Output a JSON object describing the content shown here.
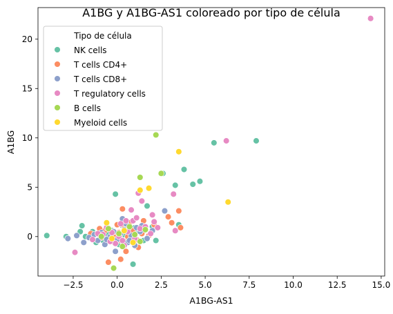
{
  "chart_data": {
    "type": "scatter",
    "title": "A1BG y A1BG-AS1 coloreado por tipo de célula",
    "xlabel": "A1BG-AS1",
    "ylabel": "A1BG",
    "xlim": [
      -4.5,
      15.2
    ],
    "ylim": [
      -4.0,
      23.2
    ],
    "xticks": [
      -2.5,
      0.0,
      2.5,
      5.0,
      7.5,
      10.0,
      12.5,
      15.0
    ],
    "xtick_labels": [
      "−2.5",
      "0.0",
      "2.5",
      "5.0",
      "7.5",
      "10.0",
      "12.5",
      "15.0"
    ],
    "yticks": [
      0,
      5,
      10,
      15,
      20
    ],
    "ytick_labels": [
      "0",
      "5",
      "10",
      "15",
      "20"
    ],
    "grid": false,
    "legend": {
      "title": "Tipo de célula",
      "placement": "top-left"
    },
    "series": [
      {
        "name": "NK cells",
        "color": "#66c2a5",
        "points": [
          [
            -4.0,
            0.1
          ],
          [
            -2.9,
            0.0
          ],
          [
            -2.0,
            1.1
          ],
          [
            -2.1,
            0.5
          ],
          [
            -1.8,
            0.0
          ],
          [
            -1.4,
            0.5
          ],
          [
            -0.8,
            -0.4
          ],
          [
            -0.5,
            0.2
          ],
          [
            -0.3,
            0.6
          ],
          [
            0.4,
            0.2
          ],
          [
            0.6,
            -0.2
          ],
          [
            0.8,
            0.4
          ],
          [
            1.0,
            0.9
          ],
          [
            -0.1,
            4.3
          ],
          [
            0.9,
            -2.8
          ],
          [
            1.5,
            -0.4
          ],
          [
            2.0,
            1.0
          ],
          [
            2.2,
            -0.4
          ],
          [
            3.3,
            5.2
          ],
          [
            3.5,
            1.2
          ],
          [
            3.8,
            6.8
          ],
          [
            4.3,
            5.3
          ],
          [
            4.7,
            5.6
          ],
          [
            5.5,
            9.5
          ],
          [
            7.9,
            9.7
          ],
          [
            0.3,
            1.1
          ],
          [
            1.2,
            0.6
          ],
          [
            1.7,
            3.1
          ],
          [
            2.6,
            6.4
          ],
          [
            -1.2,
            -0.6
          ],
          [
            0.1,
            -0.8
          ],
          [
            -0.6,
            1.0
          ]
        ]
      },
      {
        "name": "T cells CD4+",
        "color": "#fc8d62",
        "points": [
          [
            -1.5,
            0.3
          ],
          [
            -1.0,
            0.8
          ],
          [
            -0.7,
            0.6
          ],
          [
            -0.3,
            -0.5
          ],
          [
            0.0,
            1.2
          ],
          [
            0.3,
            2.8
          ],
          [
            0.5,
            -0.5
          ],
          [
            0.9,
            0.6
          ],
          [
            1.2,
            -1.1
          ],
          [
            1.4,
            0.3
          ],
          [
            2.1,
            1.2
          ],
          [
            3.1,
            1.4
          ],
          [
            3.5,
            2.6
          ],
          [
            3.6,
            0.9
          ],
          [
            -0.5,
            -2.6
          ],
          [
            0.2,
            -2.3
          ],
          [
            0.5,
            -1.5
          ],
          [
            2.9,
            2.0
          ],
          [
            0.7,
            1.4
          ],
          [
            -0.2,
            0.0
          ],
          [
            1.1,
            -0.3
          ],
          [
            0.4,
            0.9
          ],
          [
            1.8,
            0.1
          ],
          [
            -0.9,
            -0.1
          ],
          [
            0.1,
            0.4
          ],
          [
            0.6,
            0.0
          ],
          [
            1.5,
            1.6
          ],
          [
            0.2,
            -0.4
          ]
        ]
      },
      {
        "name": "T cells CD8+",
        "color": "#8da0cb",
        "points": [
          [
            -2.8,
            -0.2
          ],
          [
            -2.3,
            0.1
          ],
          [
            -1.9,
            -0.6
          ],
          [
            -1.6,
            -0.1
          ],
          [
            -1.3,
            0.2
          ],
          [
            -1.1,
            -0.4
          ],
          [
            -0.9,
            0.4
          ],
          [
            -0.7,
            -0.8
          ],
          [
            -0.4,
            0.0
          ],
          [
            -0.2,
            0.5
          ],
          [
            0.0,
            -0.3
          ],
          [
            0.2,
            0.3
          ],
          [
            0.3,
            1.8
          ],
          [
            0.5,
            1.3
          ],
          [
            0.6,
            -0.6
          ],
          [
            0.8,
            0.1
          ],
          [
            1.0,
            -0.9
          ],
          [
            1.1,
            0.9
          ],
          [
            1.3,
            0.5
          ],
          [
            1.7,
            -0.2
          ],
          [
            2.0,
            0.6
          ],
          [
            2.7,
            2.6
          ],
          [
            -0.1,
            -1.5
          ],
          [
            0.4,
            0.7
          ],
          [
            -0.6,
            -0.3
          ],
          [
            1.4,
            1.1
          ],
          [
            0.7,
            -0.4
          ]
        ]
      },
      {
        "name": "T regulatory cells",
        "color": "#e78ac3",
        "points": [
          [
            14.4,
            22.1
          ],
          [
            6.2,
            9.7
          ],
          [
            -2.4,
            -1.6
          ],
          [
            -1.4,
            -0.3
          ],
          [
            -0.8,
            0.2
          ],
          [
            -0.6,
            0.9
          ],
          [
            -0.3,
            0.4
          ],
          [
            -0.1,
            -0.7
          ],
          [
            0.1,
            0.0
          ],
          [
            0.2,
            1.3
          ],
          [
            0.4,
            -0.9
          ],
          [
            0.6,
            0.5
          ],
          [
            0.8,
            2.7
          ],
          [
            0.9,
            1.6
          ],
          [
            1.0,
            -0.2
          ],
          [
            1.1,
            1.9
          ],
          [
            1.3,
            0.8
          ],
          [
            1.4,
            3.6
          ],
          [
            1.6,
            1.0
          ],
          [
            1.9,
            0.3
          ],
          [
            2.1,
            1.5
          ],
          [
            2.3,
            0.9
          ],
          [
            3.2,
            4.3
          ],
          [
            3.3,
            0.6
          ],
          [
            0.3,
            -0.4
          ],
          [
            -0.4,
            -0.5
          ],
          [
            1.2,
            4.4
          ],
          [
            2.0,
            2.2
          ],
          [
            0.5,
            1.6
          ],
          [
            -1.1,
            0.3
          ]
        ]
      },
      {
        "name": "B cells",
        "color": "#a6d854",
        "points": [
          [
            2.2,
            10.3
          ],
          [
            -0.2,
            -3.2
          ],
          [
            -0.5,
            0.8
          ],
          [
            0.1,
            0.3
          ],
          [
            0.7,
            1.0
          ],
          [
            1.3,
            -0.5
          ],
          [
            1.3,
            6.0
          ],
          [
            2.5,
            6.4
          ],
          [
            1.0,
            0.2
          ],
          [
            -0.9,
            0.0
          ],
          [
            0.3,
            -1.0
          ],
          [
            1.6,
            0.7
          ]
        ]
      },
      {
        "name": "Myeloid cells",
        "color": "#ffd92f",
        "points": [
          [
            3.5,
            8.6
          ],
          [
            1.3,
            4.7
          ],
          [
            1.8,
            4.9
          ],
          [
            6.3,
            3.5
          ],
          [
            -0.6,
            1.4
          ],
          [
            0.4,
            0.6
          ],
          [
            0.9,
            -0.6
          ],
          [
            -0.3,
            -0.2
          ]
        ]
      }
    ]
  }
}
